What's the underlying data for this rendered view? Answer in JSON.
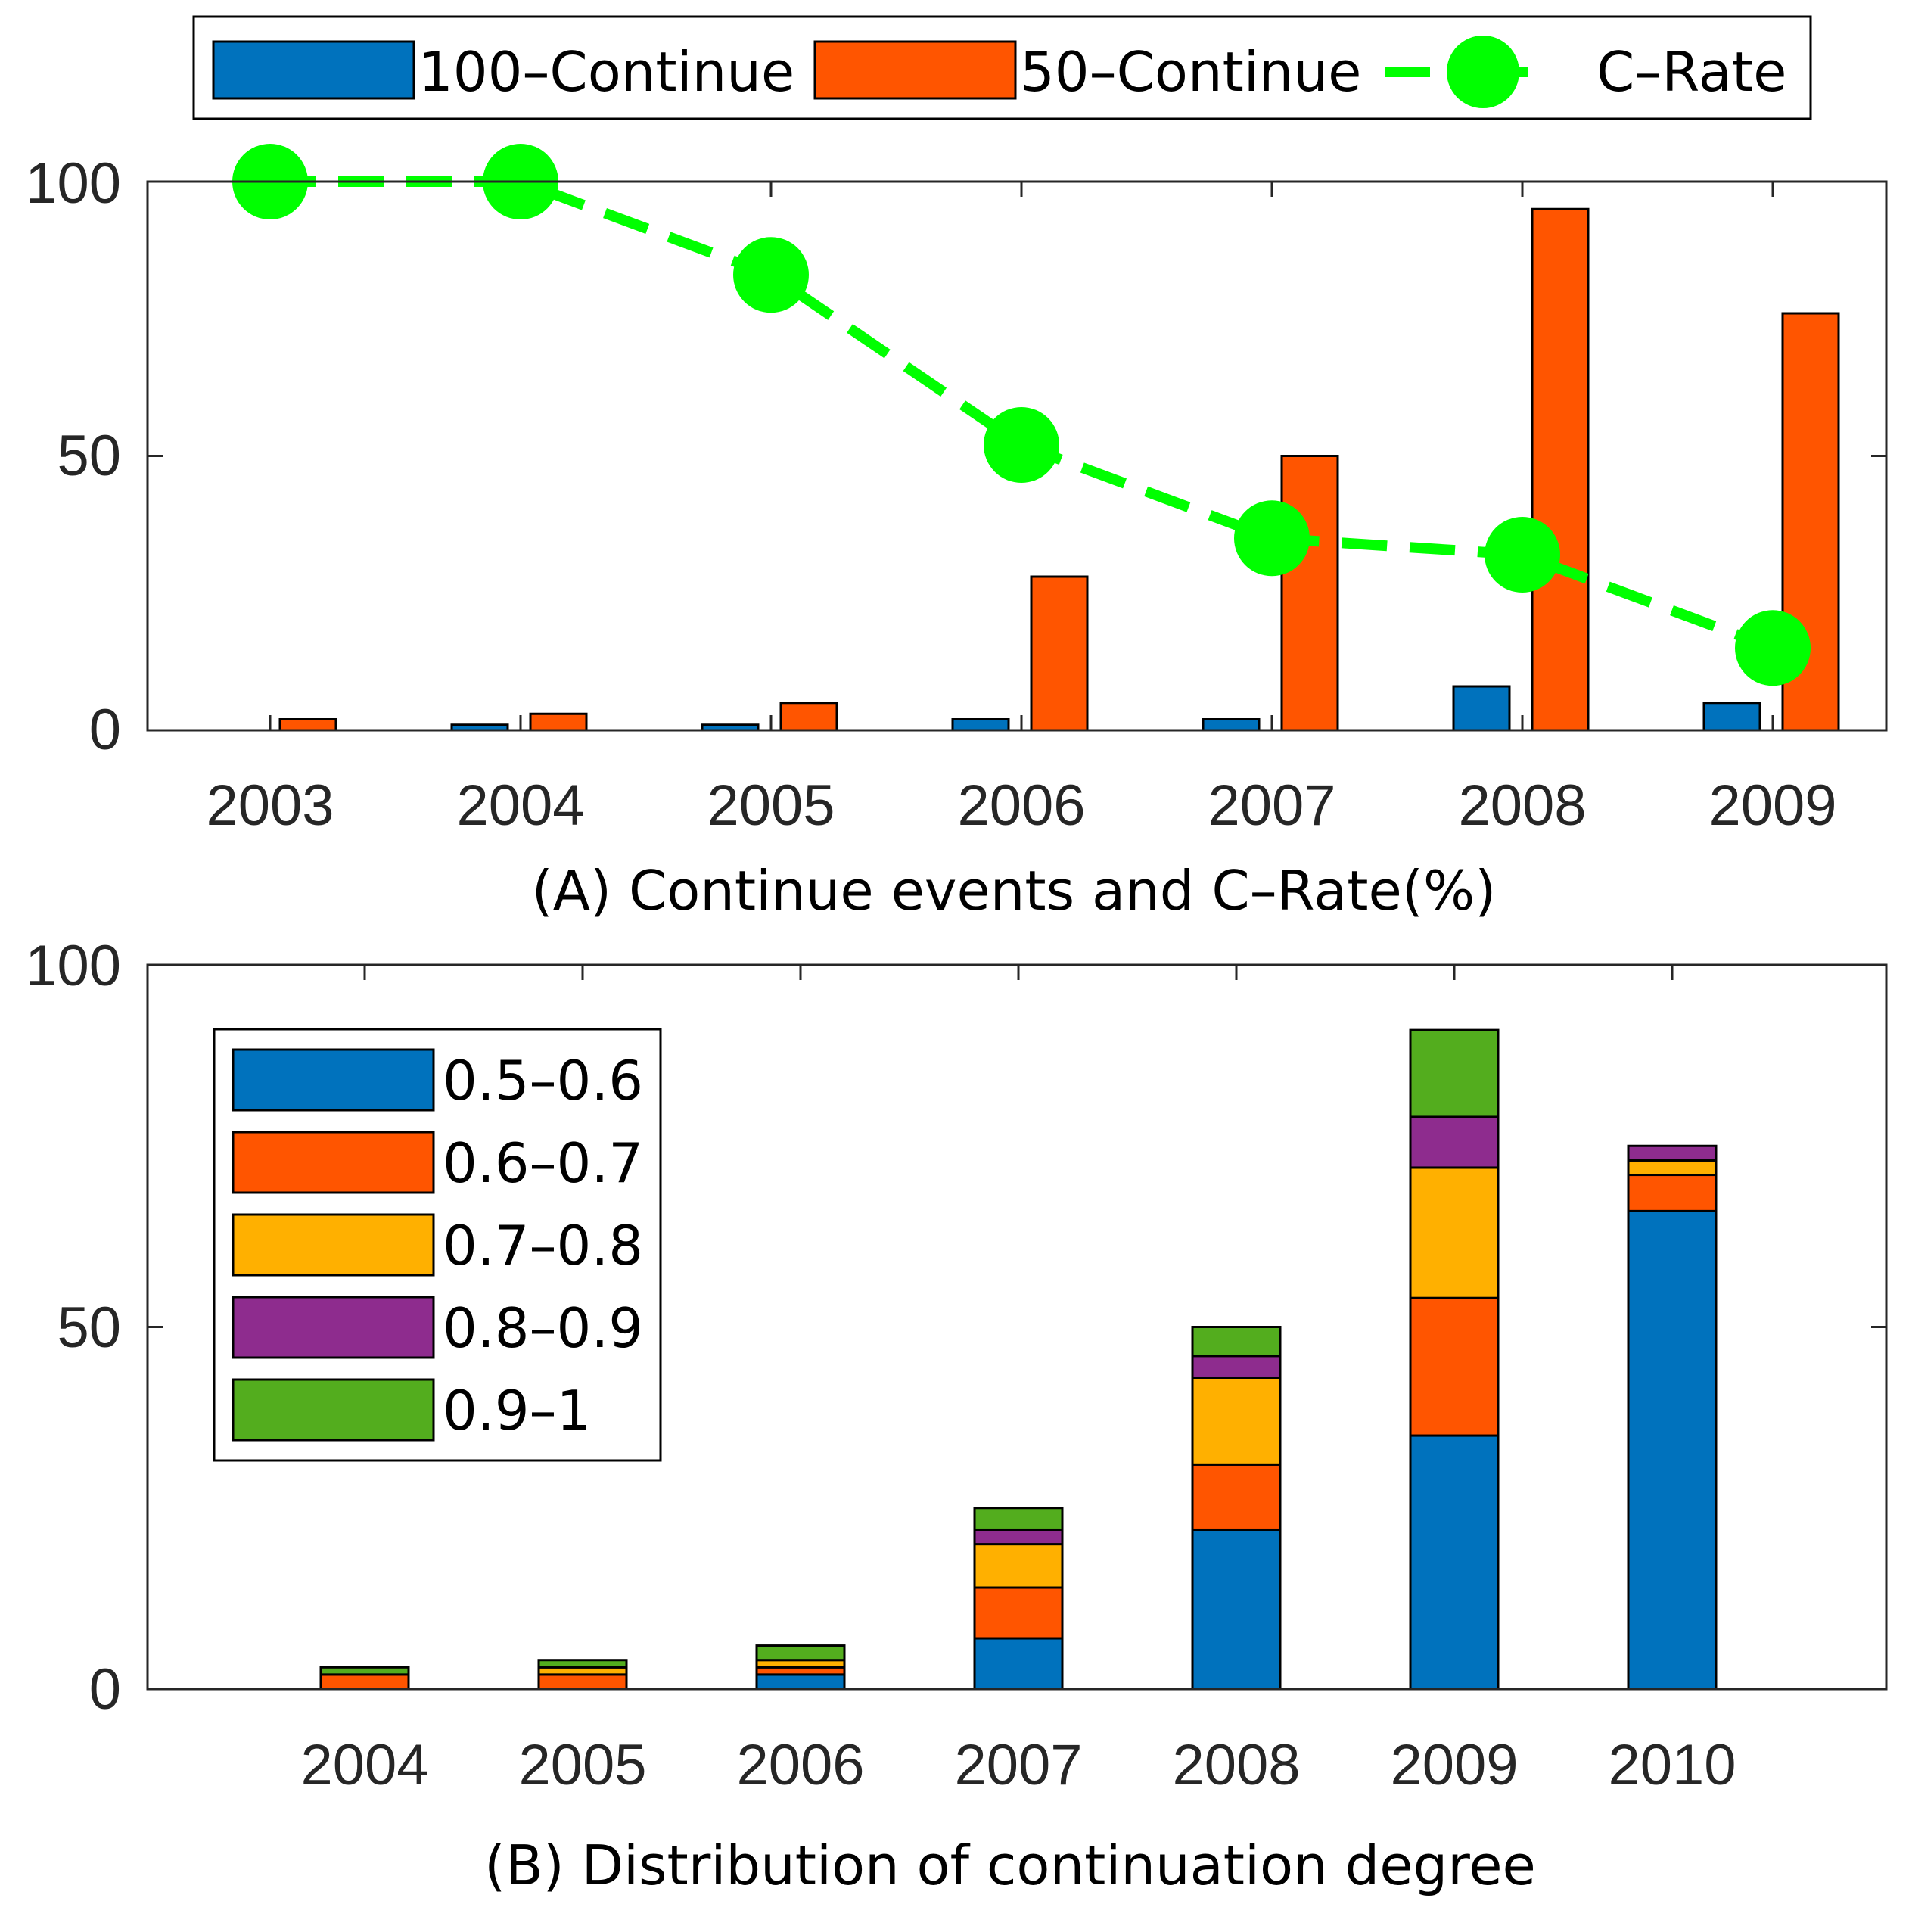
{
  "chart_data": [
    {
      "type": "bar",
      "title": "(A) Continue events and C–Rate(%)",
      "xlabel": "",
      "ylabel": "",
      "ylim": [
        0,
        100
      ],
      "yticks": [
        "0",
        "50",
        "100"
      ],
      "categories": [
        "2003",
        "2004",
        "2005",
        "2006",
        "2007",
        "2008",
        "2009"
      ],
      "legend_position": "top-outside",
      "series": [
        {
          "name": "100–Continue",
          "kind": "bar",
          "color": "#0072BD",
          "values": [
            0,
            1,
            1,
            2,
            2,
            8,
            5
          ]
        },
        {
          "name": "50–Continue",
          "kind": "bar",
          "color": "#FF5500",
          "values": [
            2,
            3,
            5,
            28,
            50,
            95,
            76
          ]
        },
        {
          "name": "C–Rate",
          "kind": "line",
          "style": "dashed",
          "marker": "circle",
          "color": "#00FF00",
          "values": [
            100,
            100,
            83,
            52,
            35,
            32,
            15
          ]
        }
      ]
    },
    {
      "type": "bar",
      "stacked": true,
      "title": "(B) Distribution of continuation degree",
      "xlabel": "",
      "ylabel": "",
      "ylim": [
        0,
        100
      ],
      "yticks": [
        "0",
        "50",
        "100"
      ],
      "categories": [
        "2004",
        "2005",
        "2006",
        "2007",
        "2008",
        "2009",
        "2010"
      ],
      "legend_position": "top-left",
      "series": [
        {
          "name": "0.5–0.6",
          "color": "#0072BD",
          "values": [
            0,
            0,
            2,
            7,
            22,
            35,
            66
          ]
        },
        {
          "name": "0.6–0.7",
          "color": "#FF5500",
          "values": [
            2,
            2,
            1,
            7,
            9,
            19,
            5
          ]
        },
        {
          "name": "0.7–0.8",
          "color": "#FFB000",
          "values": [
            0,
            1,
            1,
            6,
            12,
            18,
            2
          ]
        },
        {
          "name": "0.8–0.9",
          "color": "#8E2C8E",
          "values": [
            0,
            0,
            0,
            2,
            3,
            7,
            2
          ]
        },
        {
          "name": "0.9–1",
          "color": "#53AD1E",
          "values": [
            1,
            1,
            2,
            3,
            4,
            12,
            0
          ]
        }
      ]
    }
  ]
}
